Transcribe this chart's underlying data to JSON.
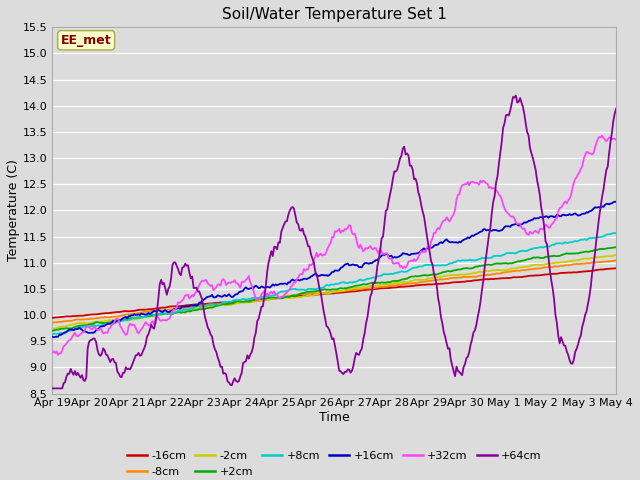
{
  "title": "Soil/Water Temperature Set 1",
  "xlabel": "Time",
  "ylabel": "Temperature (C)",
  "ylim": [
    8.5,
    15.5
  ],
  "yticks": [
    8.5,
    9.0,
    9.5,
    10.0,
    10.5,
    11.0,
    11.5,
    12.0,
    12.5,
    13.0,
    13.5,
    14.0,
    14.5,
    15.0,
    15.5
  ],
  "bg_color": "#dcdcdc",
  "series_colors": {
    "-16cm": "#cc0000",
    "-8cm": "#ff8800",
    "-2cm": "#cccc00",
    "+2cm": "#00aa00",
    "+8cm": "#00cccc",
    "+16cm": "#0000cc",
    "+32cm": "#ff44ff",
    "+64cm": "#880099"
  },
  "annotation_text": "EE_met",
  "annotation_box_color": "#ffffcc",
  "annotation_text_color": "#880000",
  "annotation_border_color": "#aaaa44",
  "n_points": 400,
  "xtick_labels": [
    "Apr 19",
    "Apr 20",
    "Apr 21",
    "Apr 22",
    "Apr 23",
    "Apr 24",
    "Apr 25",
    "Apr 26",
    "Apr 27",
    "Apr 28",
    "Apr 29",
    "Apr 30",
    "May 1",
    "May 2",
    "May 3",
    "May 4"
  ],
  "xtick_positions": [
    0,
    1,
    2,
    3,
    4,
    5,
    6,
    7,
    8,
    9,
    10,
    11,
    12,
    13,
    14,
    15
  ]
}
